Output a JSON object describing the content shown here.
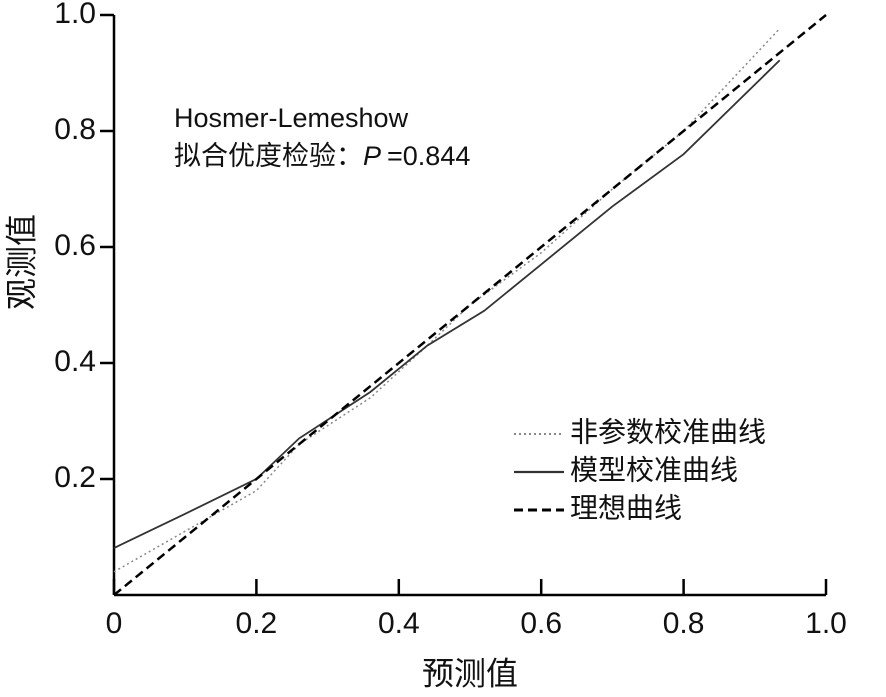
{
  "chart_data": {
    "type": "line",
    "x_label": "预测值",
    "y_label": "观测值",
    "annotation": {
      "line1": "Hosmer-Lemeshow",
      "line2": "拟合优度检验：",
      "p_symbol": "P",
      "p_text": "=0.844"
    },
    "xlim": [
      0,
      1
    ],
    "ylim": [
      0,
      1
    ],
    "xticks": [
      0,
      0.2,
      0.4,
      0.6,
      0.8,
      {
        "value": 1,
        "label": "1.0"
      }
    ],
    "yticks": [
      0.2,
      0.4,
      0.6,
      0.8,
      {
        "value": 1,
        "label": "1.0"
      }
    ],
    "legend": "lower right",
    "series": [
      {
        "name": "非参数校准曲线",
        "color": "#888888",
        "style": "dotted",
        "x": [
          0,
          0.1,
          0.2,
          0.26,
          0.36,
          0.44,
          0.5,
          0.6,
          0.7,
          0.8,
          0.933
        ],
        "values": [
          0.04,
          0.11,
          0.18,
          0.26,
          0.34,
          0.43,
          0.5,
          0.59,
          0.7,
          0.8,
          0.974
        ]
      },
      {
        "name": "模型校准曲线",
        "color": "#333333",
        "style": "solid",
        "x": [
          0,
          0.1,
          0.2,
          0.26,
          0.36,
          0.44,
          0.52,
          0.6,
          0.7,
          0.8,
          0.935
        ],
        "values": [
          0.081,
          0.14,
          0.2,
          0.27,
          0.35,
          0.43,
          0.49,
          0.57,
          0.67,
          0.76,
          0.922
        ]
      },
      {
        "name": "理想曲线",
        "color": "#000000",
        "style": "dashed",
        "x": [
          0,
          1
        ],
        "values": [
          0,
          1
        ]
      }
    ]
  }
}
